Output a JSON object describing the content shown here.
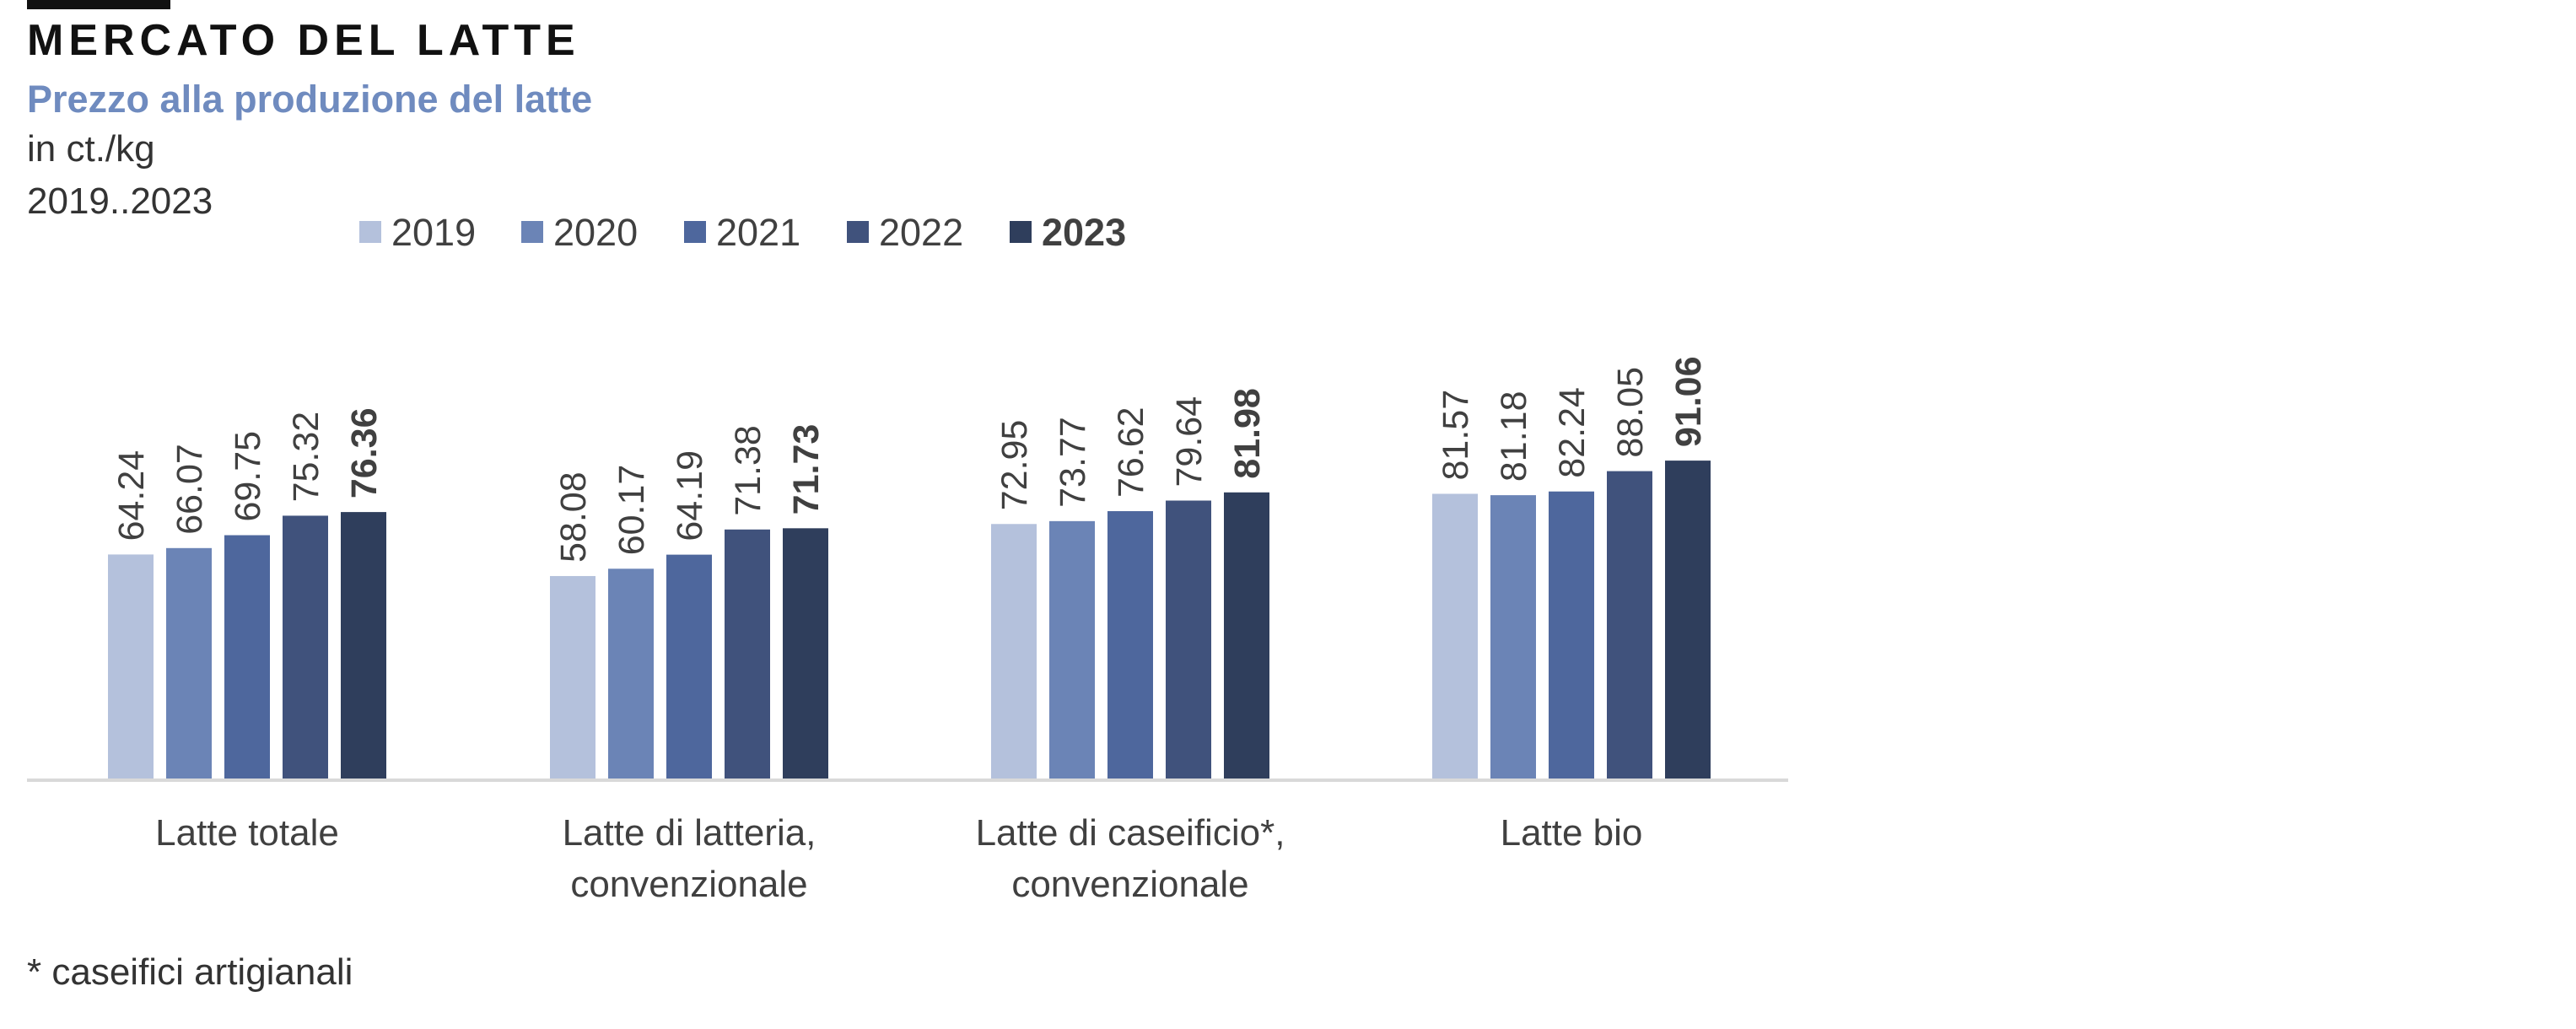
{
  "header": {
    "title": "MERCATO DEL LATTE",
    "subtitle": "Prezzo alla produzione del latte",
    "unit": "in ct./kg",
    "period": "2019..2023"
  },
  "footnote": "* caseifici artigianali",
  "colors": {
    "series": [
      "#b4c1dc",
      "#6b84b6",
      "#4e679d",
      "#40527c",
      "#2f3e5c"
    ],
    "axis": "#d9d9d9",
    "text": "#404040"
  },
  "chart_data": {
    "type": "bar",
    "title": "Prezzo alla produzione del latte",
    "ylabel": "in ct./kg",
    "xlabel": "",
    "ylim": [
      0,
      100
    ],
    "grid": false,
    "legend": "top",
    "categories": [
      [
        "Latte totale"
      ],
      [
        "Latte di latteria,",
        "convenzionale"
      ],
      [
        "Latte di caseificio*,",
        "convenzionale"
      ],
      [
        "Latte bio"
      ]
    ],
    "series": [
      {
        "name": "2019",
        "values": [
          64.24,
          58.08,
          72.95,
          81.57
        ]
      },
      {
        "name": "2020",
        "values": [
          66.07,
          60.17,
          73.77,
          81.18
        ]
      },
      {
        "name": "2021",
        "values": [
          69.75,
          64.19,
          76.62,
          82.24
        ]
      },
      {
        "name": "2022",
        "values": [
          75.32,
          71.38,
          79.64,
          88.05
        ]
      },
      {
        "name": "2023",
        "values": [
          76.36,
          71.73,
          81.98,
          91.06
        ]
      }
    ],
    "highlight_series": "2023"
  }
}
